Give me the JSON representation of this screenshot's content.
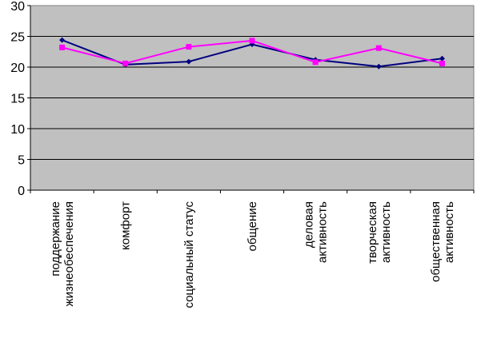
{
  "chart_data": {
    "type": "line",
    "title": "",
    "xlabel": "",
    "ylabel": "",
    "categories": [
      [
        "поддержание",
        "жизнеобеспечения"
      ],
      [
        "комфорт"
      ],
      [
        "социальный статус"
      ],
      [
        "общение"
      ],
      [
        "деловая",
        "активность"
      ],
      [
        "творческая",
        "активность"
      ],
      [
        "общественная",
        "активность"
      ]
    ],
    "ylim": [
      0,
      30
    ],
    "yticks": [
      0,
      5,
      10,
      15,
      20,
      25,
      30
    ],
    "grid": true,
    "legend": "none",
    "series": [
      {
        "values": [
          24.4,
          20.4,
          20.9,
          23.7,
          21.2,
          20.1,
          21.4
        ],
        "color": "#000080",
        "marker": "diamond"
      },
      {
        "values": [
          23.2,
          20.6,
          23.3,
          24.3,
          20.8,
          23.1,
          20.6
        ],
        "color": "#ff00ff",
        "marker": "square"
      }
    ],
    "plot_background": "#c0c0c0"
  }
}
